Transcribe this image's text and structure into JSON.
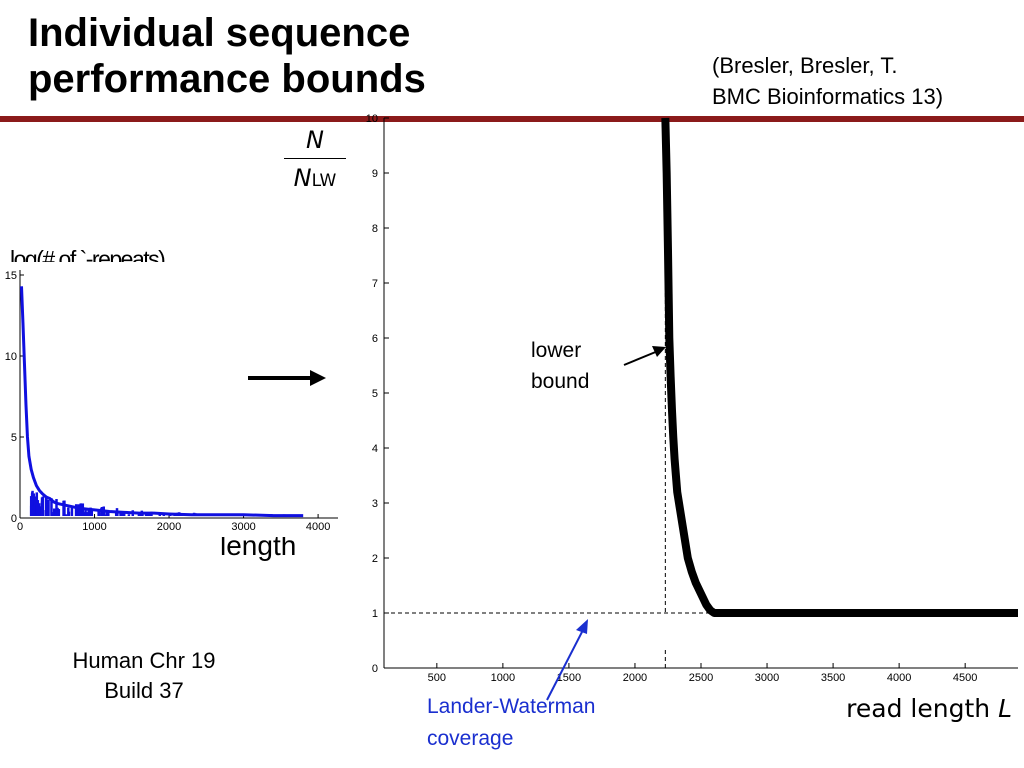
{
  "title_line1": "Individual sequence",
  "title_line2": "performance bounds",
  "citation_line1": "(Bresler, Bresler, T.",
  "citation_line2": "BMC Bioinformatics 13)",
  "rule_color": "#8b1a1a",
  "y_label_numerator": "N",
  "y_label_denominator": "N",
  "y_label_denominator_sub": "LW",
  "inset_ylabel": "log(#  of `-repeats)",
  "inset_xlabel": "length",
  "chromosome_line1": "Human Chr 19",
  "chromosome_line2": "Build 37",
  "annotation_lower_line1": "lower",
  "annotation_lower_line2": "bound",
  "annotation_lw_line1": "Lander-Waterman",
  "annotation_lw_line2": "coverage",
  "annotation_lw_color": "#1a2fcf",
  "main_xlabel": "read length ",
  "main_xlabel_var": "L",
  "chart_data": [
    {
      "type": "line",
      "xlim": [
        100,
        4900
      ],
      "ylim": [
        0,
        10
      ],
      "x_ticks": [
        500,
        1000,
        1500,
        2000,
        2500,
        3000,
        3500,
        4000,
        4500
      ],
      "x_tick_labels": [
        "500",
        "1000",
        "1500",
        "2000",
        "2500",
        "3000",
        "3500",
        "4000",
        "4500"
      ],
      "y_ticks": [
        0,
        1,
        2,
        3,
        4,
        5,
        6,
        7,
        8,
        9,
        10
      ],
      "y_tick_labels": [
        "0",
        "1",
        "2",
        "3",
        "4",
        "5",
        "6",
        "7",
        "8",
        "9",
        "10"
      ],
      "grid": false,
      "series": [
        {
          "color": "#000000",
          "x": [
            2230,
            2235,
            2240,
            2245,
            2250,
            2255,
            2260,
            2270,
            2280,
            2290,
            2300,
            2310,
            2320,
            2340,
            2360,
            2380,
            2400,
            2430,
            2460,
            2500,
            2540,
            2570,
            2600,
            3000,
            3500,
            4000,
            4500,
            4900
          ],
          "y": [
            10,
            9.5,
            9.0,
            8.3,
            7.6,
            6.8,
            6.0,
            5.3,
            4.7,
            4.2,
            3.8,
            3.5,
            3.2,
            2.9,
            2.6,
            2.3,
            2.0,
            1.75,
            1.55,
            1.35,
            1.15,
            1.05,
            1.0,
            1.0,
            1.0,
            1.0,
            1.0,
            1.0
          ]
        }
      ],
      "reference_lines": {
        "vertical_x": 2230,
        "horizontal_y": 1.0
      }
    },
    {
      "type": "line",
      "xlim": [
        0,
        4200
      ],
      "ylim": [
        0,
        15
      ],
      "x_ticks": [
        0,
        1000,
        2000,
        3000,
        4000
      ],
      "x_tick_labels": [
        "0",
        "1000",
        "2000",
        "3000",
        "4000"
      ],
      "y_ticks": [
        0,
        5,
        10,
        15
      ],
      "y_tick_labels": [
        "0",
        "5",
        "10",
        "15"
      ],
      "series": [
        {
          "color": "#1010e0",
          "x": [
            20,
            40,
            60,
            80,
            100,
            120,
            150,
            180,
            220,
            260,
            300,
            350,
            400,
            450,
            500,
            600,
            700,
            800,
            900,
            1000,
            1200,
            1400,
            1600,
            1800,
            2000,
            2300,
            2600,
            3000,
            3400,
            3800
          ],
          "y": [
            14.3,
            12.0,
            9.5,
            7.0,
            5.0,
            3.8,
            3.0,
            2.5,
            2.0,
            1.7,
            1.5,
            1.3,
            1.2,
            1.0,
            0.9,
            0.8,
            0.7,
            0.6,
            0.55,
            0.5,
            0.4,
            0.35,
            0.3,
            0.3,
            0.25,
            0.2,
            0.2,
            0.2,
            0.15,
            0.15
          ]
        }
      ]
    }
  ]
}
